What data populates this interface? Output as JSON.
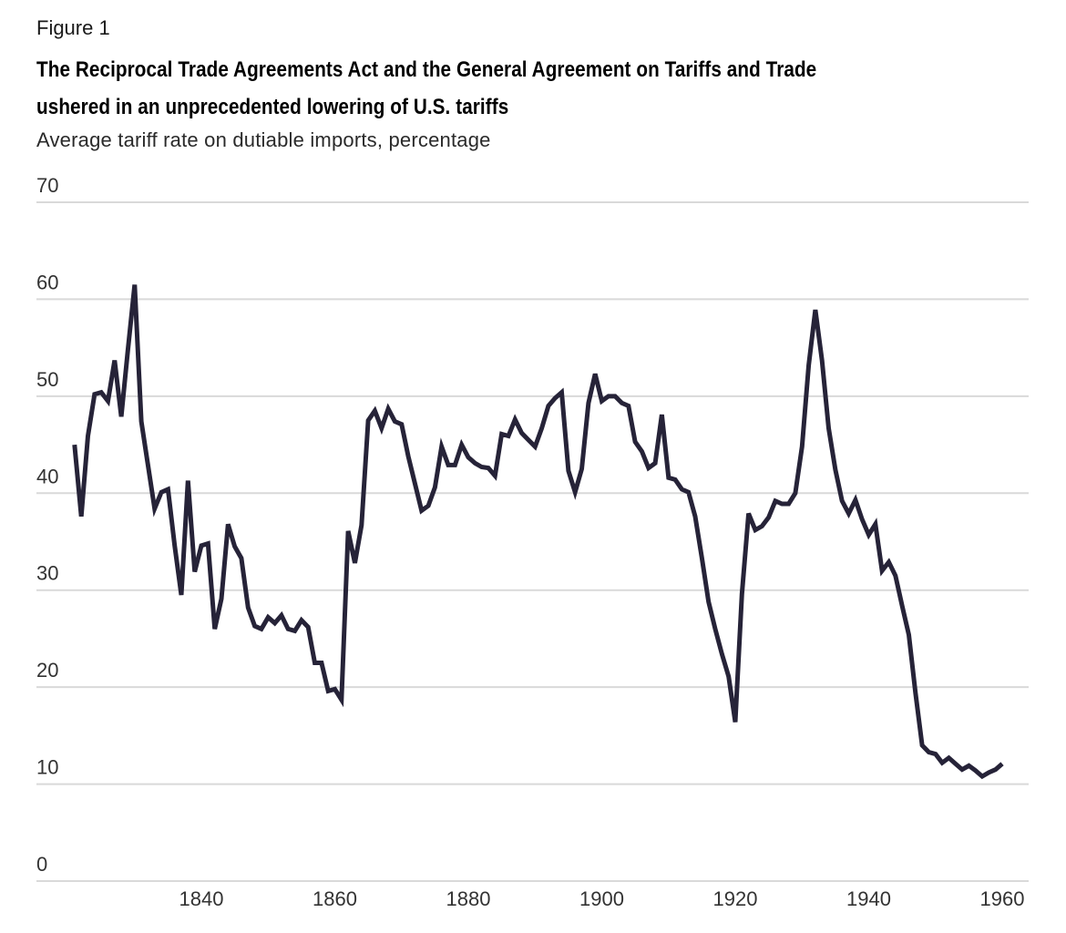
{
  "header": {
    "figure_label": "Figure 1",
    "title_lines": [
      "The Reciprocal Trade Agreements Act and the General Agreement on Tariffs and Trade",
      "ushered in an unprecedented lowering of U.S. tariffs"
    ],
    "subtitle": "Average tariff rate on dutiable imports, percentage"
  },
  "chart_data": {
    "type": "line",
    "title": "The Reciprocal Trade Agreements Act and the General Agreement on Tariffs and Trade ushered in an unprecedented lowering of U.S. tariffs",
    "subtitle": "Average tariff rate on dutiable imports, percentage",
    "xlabel": "",
    "ylabel": "Average tariff rate on dutiable imports, percentage",
    "xlim": [
      1820,
      1960
    ],
    "ylim": [
      0,
      70
    ],
    "grid": true,
    "legend": "none",
    "line_color": "#262338",
    "grid_color": "#d9d9d9",
    "y_ticks": [
      0,
      10,
      20,
      30,
      40,
      50,
      60,
      70
    ],
    "x_ticks": [
      1840,
      1860,
      1880,
      1900,
      1920,
      1940,
      1960
    ],
    "series": [
      {
        "name": "Average tariff rate",
        "x": [
          1821,
          1822,
          1823,
          1824,
          1825,
          1826,
          1827,
          1828,
          1829,
          1830,
          1831,
          1832,
          1833,
          1834,
          1835,
          1836,
          1837,
          1838,
          1839,
          1840,
          1841,
          1842,
          1843,
          1844,
          1845,
          1846,
          1847,
          1848,
          1849,
          1850,
          1851,
          1852,
          1853,
          1854,
          1855,
          1856,
          1857,
          1858,
          1859,
          1860,
          1861,
          1862,
          1863,
          1864,
          1865,
          1866,
          1867,
          1868,
          1869,
          1870,
          1871,
          1872,
          1873,
          1874,
          1875,
          1876,
          1877,
          1878,
          1879,
          1880,
          1881,
          1882,
          1883,
          1884,
          1885,
          1886,
          1887,
          1888,
          1889,
          1890,
          1891,
          1892,
          1893,
          1894,
          1895,
          1896,
          1897,
          1898,
          1899,
          1900,
          1901,
          1902,
          1903,
          1904,
          1905,
          1906,
          1907,
          1908,
          1909,
          1910,
          1911,
          1912,
          1913,
          1914,
          1915,
          1916,
          1917,
          1918,
          1919,
          1920,
          1921,
          1922,
          1923,
          1924,
          1925,
          1926,
          1927,
          1928,
          1929,
          1930,
          1931,
          1932,
          1933,
          1934,
          1935,
          1936,
          1937,
          1938,
          1939,
          1940,
          1941,
          1942,
          1943,
          1944,
          1945,
          1946,
          1947,
          1948,
          1949,
          1950,
          1951,
          1952,
          1953,
          1954,
          1955,
          1956,
          1957,
          1958,
          1959,
          1960
        ],
        "values": [
          45.0,
          37.6,
          45.9,
          50.2,
          50.4,
          49.5,
          53.7,
          47.9,
          54.8,
          61.5,
          47.4,
          42.9,
          38.4,
          40.1,
          40.4,
          34.6,
          29.5,
          41.3,
          31.9,
          34.6,
          34.8,
          26.0,
          29.1,
          36.8,
          34.5,
          33.3,
          28.2,
          26.3,
          26.0,
          27.2,
          26.6,
          27.4,
          26.0,
          25.8,
          26.9,
          26.2,
          22.5,
          22.5,
          19.6,
          19.8,
          18.7,
          36.1,
          32.8,
          36.7,
          47.5,
          48.5,
          46.7,
          48.7,
          47.4,
          47.1,
          43.8,
          41.0,
          38.2,
          38.7,
          40.6,
          44.8,
          42.9,
          42.9,
          45.0,
          43.7,
          43.1,
          42.7,
          42.6,
          41.8,
          46.1,
          45.9,
          47.6,
          46.2,
          45.5,
          44.8,
          46.7,
          49.0,
          49.8,
          50.4,
          42.3,
          40.1,
          42.5,
          49.3,
          52.3,
          49.5,
          50.0,
          50.0,
          49.3,
          49.0,
          45.3,
          44.3,
          42.6,
          43.1,
          48.1,
          41.6,
          41.4,
          40.4,
          40.1,
          37.6,
          33.3,
          28.8,
          26.0,
          23.4,
          21.1,
          16.4,
          29.6,
          37.9,
          36.2,
          36.6,
          37.5,
          39.2,
          38.9,
          38.9,
          40.0,
          44.8,
          53.2,
          58.9,
          53.7,
          46.7,
          42.4,
          39.2,
          37.9,
          39.3,
          37.3,
          35.7,
          36.8,
          32.0,
          32.9,
          31.5,
          28.4,
          25.4,
          19.4,
          14.0,
          13.3,
          13.1,
          12.2,
          12.7,
          12.1,
          11.5,
          11.9,
          11.4,
          10.8,
          11.2,
          11.5,
          12.1
        ]
      }
    ]
  }
}
